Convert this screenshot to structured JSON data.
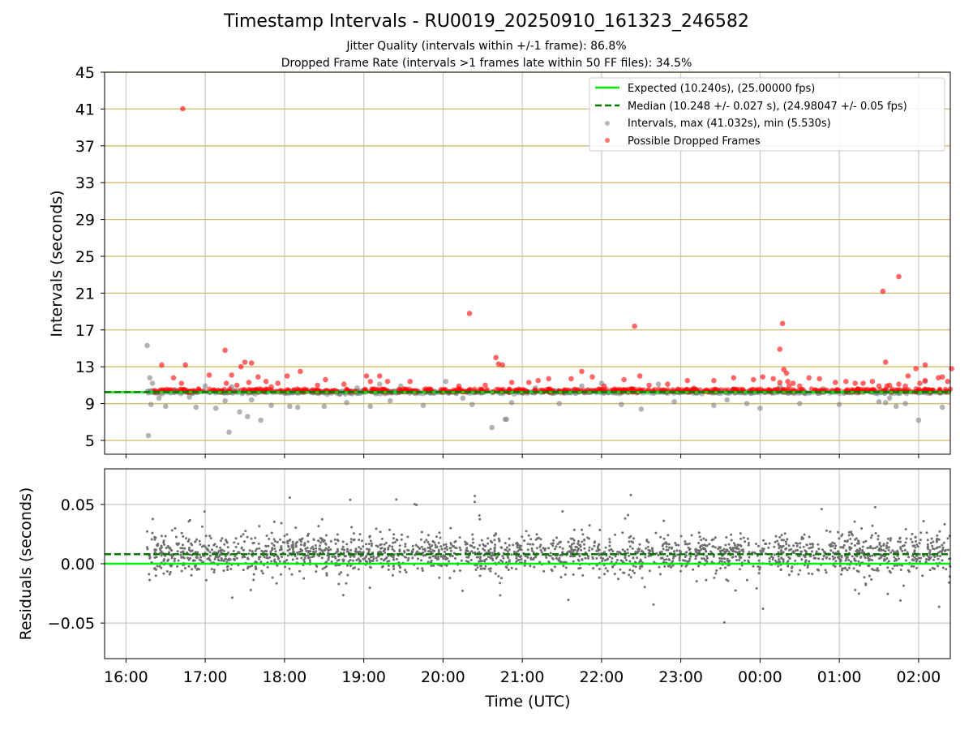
{
  "figure": {
    "title": "Timestamp Intervals - RU0019_20250910_161323_246582",
    "subtitle_1": "Jitter Quality (intervals within +/-1 frame): 86.8%",
    "subtitle_2": "Dropped Frame Rate (intervals >1 frames late within 50 FF files): 34.5%"
  },
  "chart_data": [
    {
      "type": "scatter",
      "xlabel": "",
      "ylabel": "Intervals (seconds)",
      "x_range_hours": [
        15.73,
        26.4
      ],
      "ylim": [
        3.5,
        45
      ],
      "yticks": [
        5,
        9,
        13,
        17,
        21,
        25,
        29,
        33,
        37,
        41,
        45
      ],
      "ytick_labels": [
        "5",
        "9",
        "13",
        "17",
        "21",
        "25",
        "29",
        "33",
        "37",
        "41",
        "45"
      ],
      "grid": "y (tan)",
      "legend_position": "top-right",
      "legend": [
        "Expected (10.240s), (25.00000 fps)",
        "Median (10.248 +/- 0.027 s), (24.98047 +/- 0.05 fps)",
        "Intervals, max (41.032s), min (5.530s)",
        "Possible Dropped Frames"
      ],
      "expected": 10.24,
      "median": 10.248,
      "max_interval": 41.032,
      "min_interval": 5.53,
      "colors": {
        "expected": "#00ee00",
        "median": "#007a00",
        "intervals": "#808080",
        "dropped": "#ff0000",
        "grid": "#d4b96a"
      },
      "series": [
        {
          "name": "Intervals, max (41.032s), min (5.530s)",
          "role": "intervals",
          "x": [
            "16:16",
            "16:17",
            "16:18",
            "16:19",
            "16:20",
            "16:25",
            "16:30",
            "16:37",
            "16:48",
            "16:53",
            "17:00",
            "17:08",
            "17:15",
            "17:18",
            "17:20",
            "17:26",
            "17:32",
            "17:35",
            "17:42",
            "17:50",
            "18:04",
            "18:10",
            "18:30",
            "18:42",
            "18:47",
            "18:55",
            "19:05",
            "19:12",
            "19:20",
            "19:28",
            "19:45",
            "20:02",
            "20:15",
            "20:22",
            "20:37",
            "20:47",
            "20:48",
            "20:52",
            "21:10",
            "21:28",
            "21:45",
            "22:00",
            "22:15",
            "22:30",
            "22:43",
            "22:55",
            "23:10",
            "23:25",
            "23:35",
            "23:40",
            "23:50",
            "24:00",
            "24:15",
            "24:30",
            "24:48",
            "25:00",
            "25:20",
            "25:30",
            "25:35",
            "25:38",
            "25:43",
            "25:45",
            "25:50",
            "26:00",
            "26:05",
            "26:18"
          ],
          "y": [
            15.3,
            5.53,
            11.8,
            8.9,
            11.2,
            9.6,
            8.7,
            10.5,
            9.7,
            8.6,
            10.9,
            8.5,
            9.3,
            5.9,
            10.8,
            8.1,
            7.6,
            9.4,
            7.2,
            8.8,
            8.7,
            8.6,
            8.7,
            10.1,
            9.1,
            10.7,
            8.7,
            11.1,
            9.3,
            10.9,
            8.8,
            11.4,
            9.6,
            8.9,
            6.4,
            7.3,
            7.3,
            9.1,
            10.7,
            9.0,
            10.9,
            11.2,
            8.9,
            8.4,
            11.1,
            9.2,
            10.7,
            8.8,
            9.4,
            10.6,
            9.0,
            8.5,
            10.9,
            9.0,
            10.6,
            8.9,
            10.4,
            9.2,
            9.1,
            9.6,
            8.7,
            10.1,
            9.0,
            7.2,
            11.4,
            8.6
          ]
        },
        {
          "name": "Possible Dropped Frames",
          "role": "dropped",
          "x": [
            "16:27",
            "16:43",
            "16:36",
            "16:45",
            "16:42",
            "17:03",
            "17:15",
            "17:16",
            "17:20",
            "17:24",
            "17:27",
            "17:30",
            "17:33",
            "17:35",
            "17:40",
            "17:46",
            "17:50",
            "17:55",
            "18:02",
            "18:12",
            "18:25",
            "18:31",
            "18:45",
            "19:02",
            "19:05",
            "19:12",
            "19:18",
            "19:35",
            "20:12",
            "20:20",
            "20:32",
            "20:40",
            "20:42",
            "20:45",
            "20:52",
            "21:05",
            "21:12",
            "21:20",
            "21:37",
            "21:45",
            "21:53",
            "22:02",
            "22:17",
            "22:25",
            "22:29",
            "22:36",
            "22:50",
            "23:05",
            "23:25",
            "23:40",
            "23:55",
            "24:02",
            "24:10",
            "24:15",
            "24:15",
            "24:17",
            "24:18",
            "24:20",
            "24:21",
            "24:22",
            "24:25",
            "24:30",
            "24:37",
            "24:45",
            "24:57",
            "25:05",
            "25:12",
            "25:18",
            "25:25",
            "25:30",
            "25:33",
            "25:35",
            "25:36",
            "25:38",
            "25:45",
            "25:45",
            "25:50",
            "25:52",
            "25:58",
            "26:05",
            "26:15",
            "26:18",
            "26:22",
            "26:25",
            "26:05",
            "26:01"
          ],
          "y": [
            13.2,
            41.03,
            11.8,
            13.2,
            11.2,
            12.1,
            14.8,
            11.2,
            12.1,
            11.0,
            13.0,
            13.5,
            11.3,
            13.4,
            11.9,
            11.4,
            10.8,
            11.2,
            12.0,
            12.5,
            11.0,
            11.6,
            11.1,
            12.0,
            11.4,
            12.0,
            11.4,
            11.4,
            10.9,
            18.8,
            11.0,
            14.0,
            13.3,
            13.2,
            11.3,
            11.3,
            11.5,
            11.7,
            11.7,
            12.5,
            11.9,
            10.9,
            11.6,
            17.4,
            12.0,
            11.0,
            11.1,
            11.5,
            11.5,
            11.8,
            11.6,
            11.9,
            11.7,
            11.3,
            14.9,
            17.7,
            12.7,
            12.3,
            11.4,
            10.9,
            11.2,
            10.9,
            11.8,
            11.7,
            11.3,
            11.4,
            11.2,
            11.2,
            11.4,
            10.9,
            21.2,
            13.5,
            10.9,
            11.0,
            22.8,
            11.1,
            10.9,
            12.0,
            12.8,
            11.5,
            11.8,
            11.9,
            11.4,
            12.8,
            13.2,
            11.2
          ]
        }
      ]
    },
    {
      "type": "scatter",
      "xlabel": "Time (UTC)",
      "ylabel": "Residuals (seconds)",
      "ylim": [
        -0.08,
        0.08
      ],
      "yticks": [
        0.05,
        0.0,
        -0.05
      ],
      "ytick_labels": [
        "0.05",
        "0.00",
        "−0.05"
      ],
      "xtick_labels": [
        "16:00",
        "17:00",
        "18:00",
        "19:00",
        "20:00",
        "21:00",
        "22:00",
        "23:00",
        "00:00",
        "01:00",
        "02:00"
      ],
      "grid": "both (gray)",
      "expected_residual": 0.0,
      "median_residual": 0.008,
      "x_start": "16:16",
      "x_end": "02:24",
      "colors": {
        "points": "#6e6e6e",
        "expected": "#00ee00",
        "median": "#007a00",
        "grid": "#c8c8c8"
      }
    }
  ]
}
